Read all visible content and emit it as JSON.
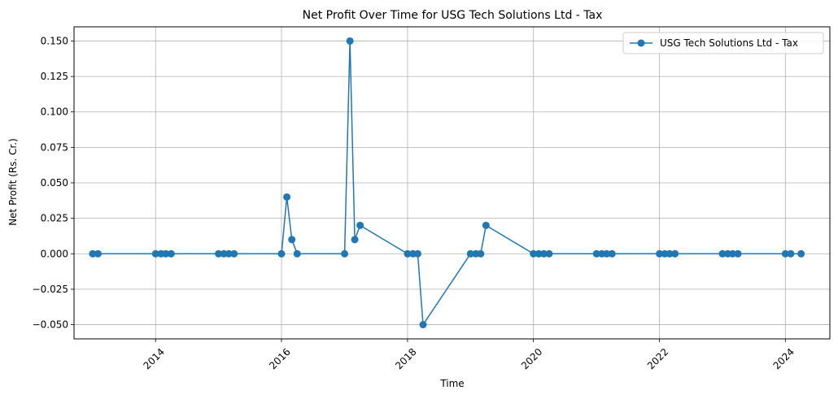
{
  "chart_data": {
    "type": "line",
    "title": "Net Profit Over Time for USG Tech Solutions Ltd - Tax",
    "xlabel": "Time",
    "ylabel": "Net Profit (Rs. Cr.)",
    "x_type": "date",
    "xlim": [
      "2012-09-15",
      "2024-09-15"
    ],
    "ylim": [
      -0.06,
      0.16
    ],
    "x_ticks": [
      "2014",
      "2016",
      "2018",
      "2020",
      "2022",
      "2024"
    ],
    "y_ticks": [
      "−0.050",
      "−0.025",
      "0.000",
      "0.025",
      "0.050",
      "0.075",
      "0.100",
      "0.125",
      "0.150"
    ],
    "grid": true,
    "legend_position": "top-right",
    "series": [
      {
        "name": "USG Tech Solutions Ltd - Tax",
        "color": "#1f77b4",
        "marker": "circle",
        "points": [
          {
            "x": "2013-01-01",
            "y": 0
          },
          {
            "x": "2013-02-01",
            "y": 0
          },
          {
            "x": "2014-01-01",
            "y": 0
          },
          {
            "x": "2014-02-01",
            "y": 0
          },
          {
            "x": "2014-03-01",
            "y": 0
          },
          {
            "x": "2014-04-01",
            "y": 0
          },
          {
            "x": "2015-01-01",
            "y": 0
          },
          {
            "x": "2015-02-01",
            "y": 0
          },
          {
            "x": "2015-03-01",
            "y": 0
          },
          {
            "x": "2015-04-01",
            "y": 0
          },
          {
            "x": "2016-01-01",
            "y": 0
          },
          {
            "x": "2016-02-01",
            "y": 0.04
          },
          {
            "x": "2016-03-01",
            "y": 0.01
          },
          {
            "x": "2016-04-01",
            "y": 0
          },
          {
            "x": "2017-01-01",
            "y": 0
          },
          {
            "x": "2017-02-01",
            "y": 0.15
          },
          {
            "x": "2017-03-01",
            "y": 0.01
          },
          {
            "x": "2017-04-01",
            "y": 0.02
          },
          {
            "x": "2018-01-01",
            "y": 0
          },
          {
            "x": "2018-02-01",
            "y": 0
          },
          {
            "x": "2018-03-01",
            "y": 0
          },
          {
            "x": "2018-04-01",
            "y": -0.05
          },
          {
            "x": "2019-01-01",
            "y": 0
          },
          {
            "x": "2019-02-01",
            "y": 0
          },
          {
            "x": "2019-03-01",
            "y": 0
          },
          {
            "x": "2019-04-01",
            "y": 0.02
          },
          {
            "x": "2020-01-01",
            "y": 0
          },
          {
            "x": "2020-02-01",
            "y": 0
          },
          {
            "x": "2020-03-01",
            "y": 0
          },
          {
            "x": "2020-04-01",
            "y": 0
          },
          {
            "x": "2021-01-01",
            "y": 0
          },
          {
            "x": "2021-02-01",
            "y": 0
          },
          {
            "x": "2021-03-01",
            "y": 0
          },
          {
            "x": "2021-04-01",
            "y": 0
          },
          {
            "x": "2022-01-01",
            "y": 0
          },
          {
            "x": "2022-02-01",
            "y": 0
          },
          {
            "x": "2022-03-01",
            "y": 0
          },
          {
            "x": "2022-04-01",
            "y": 0
          },
          {
            "x": "2023-01-01",
            "y": 0
          },
          {
            "x": "2023-02-01",
            "y": 0
          },
          {
            "x": "2023-03-01",
            "y": 0
          },
          {
            "x": "2023-04-01",
            "y": 0
          },
          {
            "x": "2024-01-01",
            "y": 0
          },
          {
            "x": "2024-02-01",
            "y": 0
          },
          {
            "x": "2024-04-01",
            "y": 0
          }
        ]
      }
    ]
  }
}
